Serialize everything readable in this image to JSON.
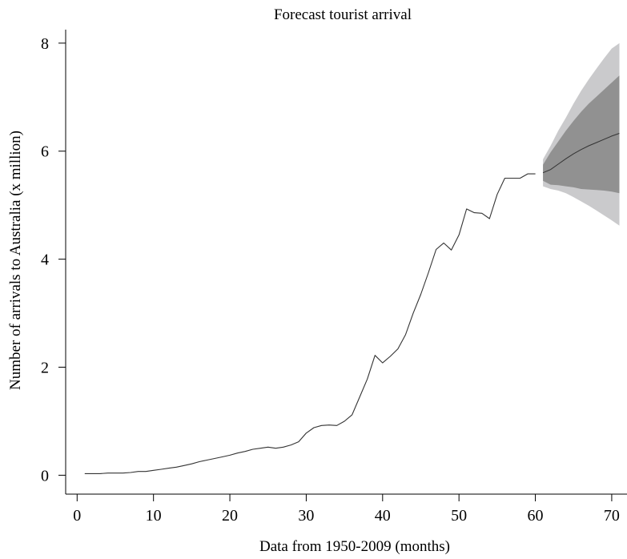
{
  "chart_data": {
    "type": "line",
    "title": "Forecast tourist arrival",
    "xlabel": "Data from 1950-2009 (months)",
    "ylabel": "Number of arrivals to Australia (x million)",
    "xlim": [
      -1.5,
      72
    ],
    "ylim": [
      -0.35,
      8.25
    ],
    "x_ticks": [
      0,
      10,
      20,
      30,
      40,
      50,
      60,
      70
    ],
    "y_ticks": [
      0,
      2,
      4,
      6,
      8
    ],
    "grid": false,
    "legend": "none",
    "series": [
      {
        "role": "observed",
        "x": [
          1,
          2,
          3,
          4,
          5,
          6,
          7,
          8,
          9,
          10,
          11,
          12,
          13,
          14,
          15,
          16,
          17,
          18,
          19,
          20,
          21,
          22,
          23,
          24,
          25,
          26,
          27,
          28,
          29,
          30,
          31,
          32,
          33,
          34,
          35,
          36,
          37,
          38,
          39,
          40,
          41,
          42,
          43,
          44,
          45,
          46,
          47,
          48,
          49,
          50,
          51,
          52,
          53,
          54,
          55,
          56,
          57,
          58,
          59,
          60
        ],
        "y": [
          0.03,
          0.03,
          0.03,
          0.04,
          0.04,
          0.04,
          0.05,
          0.07,
          0.07,
          0.09,
          0.11,
          0.13,
          0.15,
          0.18,
          0.21,
          0.25,
          0.28,
          0.31,
          0.34,
          0.37,
          0.41,
          0.44,
          0.48,
          0.5,
          0.52,
          0.5,
          0.52,
          0.56,
          0.62,
          0.78,
          0.88,
          0.92,
          0.93,
          0.92,
          1.0,
          1.12,
          1.45,
          1.78,
          2.22,
          2.08,
          2.2,
          2.34,
          2.6,
          3.0,
          3.35,
          3.75,
          4.18,
          4.3,
          4.17,
          4.45,
          4.93,
          4.86,
          4.85,
          4.75,
          5.2,
          5.5,
          5.5,
          5.5,
          5.58,
          5.58
        ]
      },
      {
        "role": "forecast",
        "x": [
          61,
          62,
          63,
          64,
          65,
          66,
          67,
          68,
          69,
          70,
          71
        ],
        "mean": [
          5.6,
          5.66,
          5.76,
          5.86,
          5.95,
          6.03,
          6.1,
          6.16,
          6.22,
          6.28,
          6.33
        ],
        "lower80": [
          5.45,
          5.38,
          5.37,
          5.35,
          5.33,
          5.3,
          5.29,
          5.28,
          5.27,
          5.25,
          5.22
        ],
        "upper80": [
          5.75,
          5.98,
          6.18,
          6.38,
          6.56,
          6.73,
          6.88,
          7.01,
          7.14,
          7.27,
          7.4
        ],
        "lower95": [
          5.35,
          5.3,
          5.27,
          5.22,
          5.15,
          5.07,
          4.99,
          4.9,
          4.81,
          4.72,
          4.62
        ],
        "upper95": [
          5.85,
          6.1,
          6.38,
          6.62,
          6.88,
          7.12,
          7.33,
          7.53,
          7.72,
          7.9,
          8.0
        ]
      }
    ],
    "colors": {
      "line": "#333333",
      "band95": "#cacacc",
      "band80": "#919191",
      "axis": "#000000"
    }
  }
}
